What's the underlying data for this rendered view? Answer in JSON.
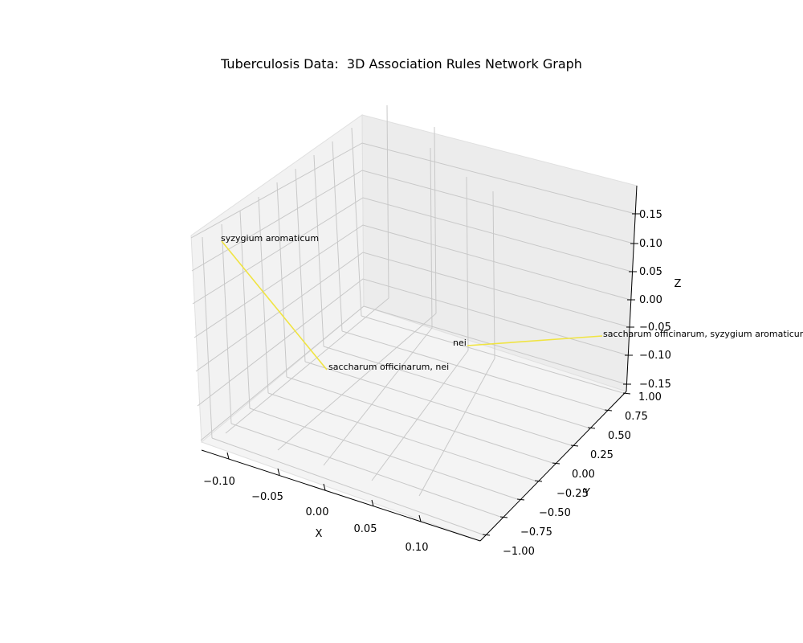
{
  "chart_data": {
    "type": "3d-network",
    "title": "Tuberculosis Data:  3D Association Rules Network Graph",
    "xlabel": "X",
    "ylabel": "Y",
    "zlabel": "Z",
    "x_ticks": [
      "−0.10",
      "−0.05",
      "0.00",
      "0.05",
      "0.10"
    ],
    "y_ticks": [
      "−1.00",
      "−0.75",
      "−0.50",
      "−0.25",
      "0.00",
      "0.25",
      "0.50",
      "0.75",
      "1.00"
    ],
    "z_ticks": [
      "−0.15",
      "−0.10",
      "−0.05",
      "0.00",
      "0.05",
      "0.10",
      "0.15"
    ],
    "edge_color": "#f0e442",
    "nodes": [
      {
        "label": "syzygium aromaticum"
      },
      {
        "label": "saccharum officinarum, nei"
      },
      {
        "label": "nei"
      },
      {
        "label": "saccharum officinarum, syzygium aromaticum"
      }
    ],
    "edges": [
      {
        "source": "syzygium aromaticum",
        "target": "saccharum officinarum, nei"
      },
      {
        "source": "nei",
        "target": "saccharum officinarum, syzygium aromaticum"
      }
    ]
  }
}
